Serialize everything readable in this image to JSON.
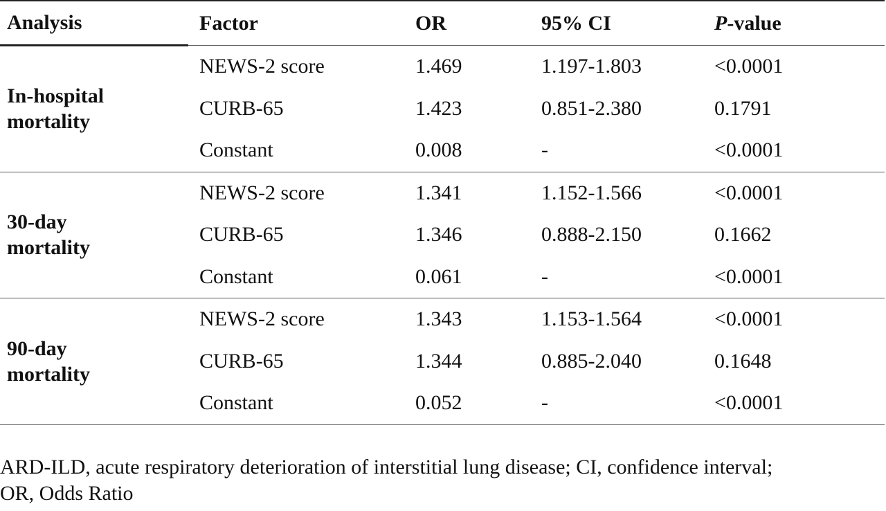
{
  "table": {
    "headers": {
      "analysis": "Analysis",
      "factor": "Factor",
      "or": "OR",
      "ci": "95% CI",
      "p_italic": "P",
      "p_rest": "-value"
    },
    "groups": [
      {
        "analysis_line1": "In-hospital",
        "analysis_line2": "mortality",
        "rows": [
          {
            "factor": "NEWS-2 score",
            "or": "1.469",
            "ci": "1.197-1.803",
            "p": "<0.0001"
          },
          {
            "factor": "CURB-65",
            "or": "1.423",
            "ci": "0.851-2.380",
            "p": "0.1791"
          },
          {
            "factor": "Constant",
            "or": "0.008",
            "ci": "-",
            "p": "<0.0001"
          }
        ]
      },
      {
        "analysis_line1": "30-day",
        "analysis_line2": "mortality",
        "rows": [
          {
            "factor": "NEWS-2 score",
            "or": "1.341",
            "ci": "1.152-1.566",
            "p": "<0.0001"
          },
          {
            "factor": "CURB-65",
            "or": "1.346",
            "ci": "0.888-2.150",
            "p": "0.1662"
          },
          {
            "factor": "Constant",
            "or": "0.061",
            "ci": "-",
            "p": "<0.0001"
          }
        ]
      },
      {
        "analysis_line1": "90-day",
        "analysis_line2": "mortality",
        "rows": [
          {
            "factor": "NEWS-2 score",
            "or": "1.343",
            "ci": "1.153-1.564",
            "p": "<0.0001"
          },
          {
            "factor": "CURB-65",
            "or": "1.344",
            "ci": "0.885-2.040",
            "p": "0.1648"
          },
          {
            "factor": "Constant",
            "or": "0.052",
            "ci": "-",
            "p": "<0.0001"
          }
        ]
      }
    ]
  },
  "footnote": {
    "line1": "ARD-ILD, acute respiratory deterioration of interstitial lung disease; CI, confidence interval;",
    "line2": "OR, Odds Ratio"
  }
}
